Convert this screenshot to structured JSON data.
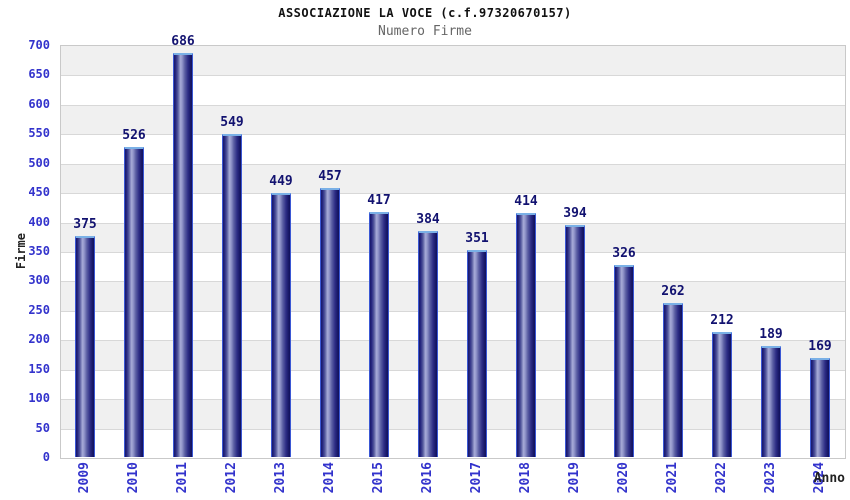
{
  "header": {
    "title": "ASSOCIAZIONE LA VOCE (c.f.97320670157)",
    "subtitle": "Numero Firme"
  },
  "chart_data": {
    "type": "bar",
    "title": "ASSOCIAZIONE LA VOCE (c.f.97320670157)",
    "subtitle": "Numero Firme",
    "categories": [
      "2009",
      "2010",
      "2011",
      "2012",
      "2013",
      "2014",
      "2015",
      "2016",
      "2017",
      "2018",
      "2019",
      "2020",
      "2021",
      "2022",
      "2023",
      "2024"
    ],
    "values": [
      375,
      526,
      686,
      549,
      449,
      457,
      417,
      384,
      351,
      414,
      394,
      326,
      262,
      212,
      189,
      169
    ],
    "xlabel": "Anno",
    "ylabel": "Firme",
    "ylim": [
      0,
      700
    ],
    "ytick_step": 50,
    "yticks": [
      0,
      50,
      100,
      150,
      200,
      250,
      300,
      350,
      400,
      450,
      500,
      550,
      600,
      650,
      700
    ],
    "grid": "horizontal-bands-alternating",
    "legend": "none",
    "colors": {
      "bar_dark": "#181868",
      "bar_highlight": "#a8acd8",
      "bar_border_side": "#3a57d4",
      "bar_border_top": "#7ab0e6",
      "tick_label": "#3333cc",
      "value_label": "#121270",
      "band_gray": "#f0f0f0",
      "gridline": "#d8d8d8",
      "plot_border": "#c9c9c9",
      "title": "#111111",
      "subtitle": "#666666",
      "axis_label": "#222222"
    }
  }
}
